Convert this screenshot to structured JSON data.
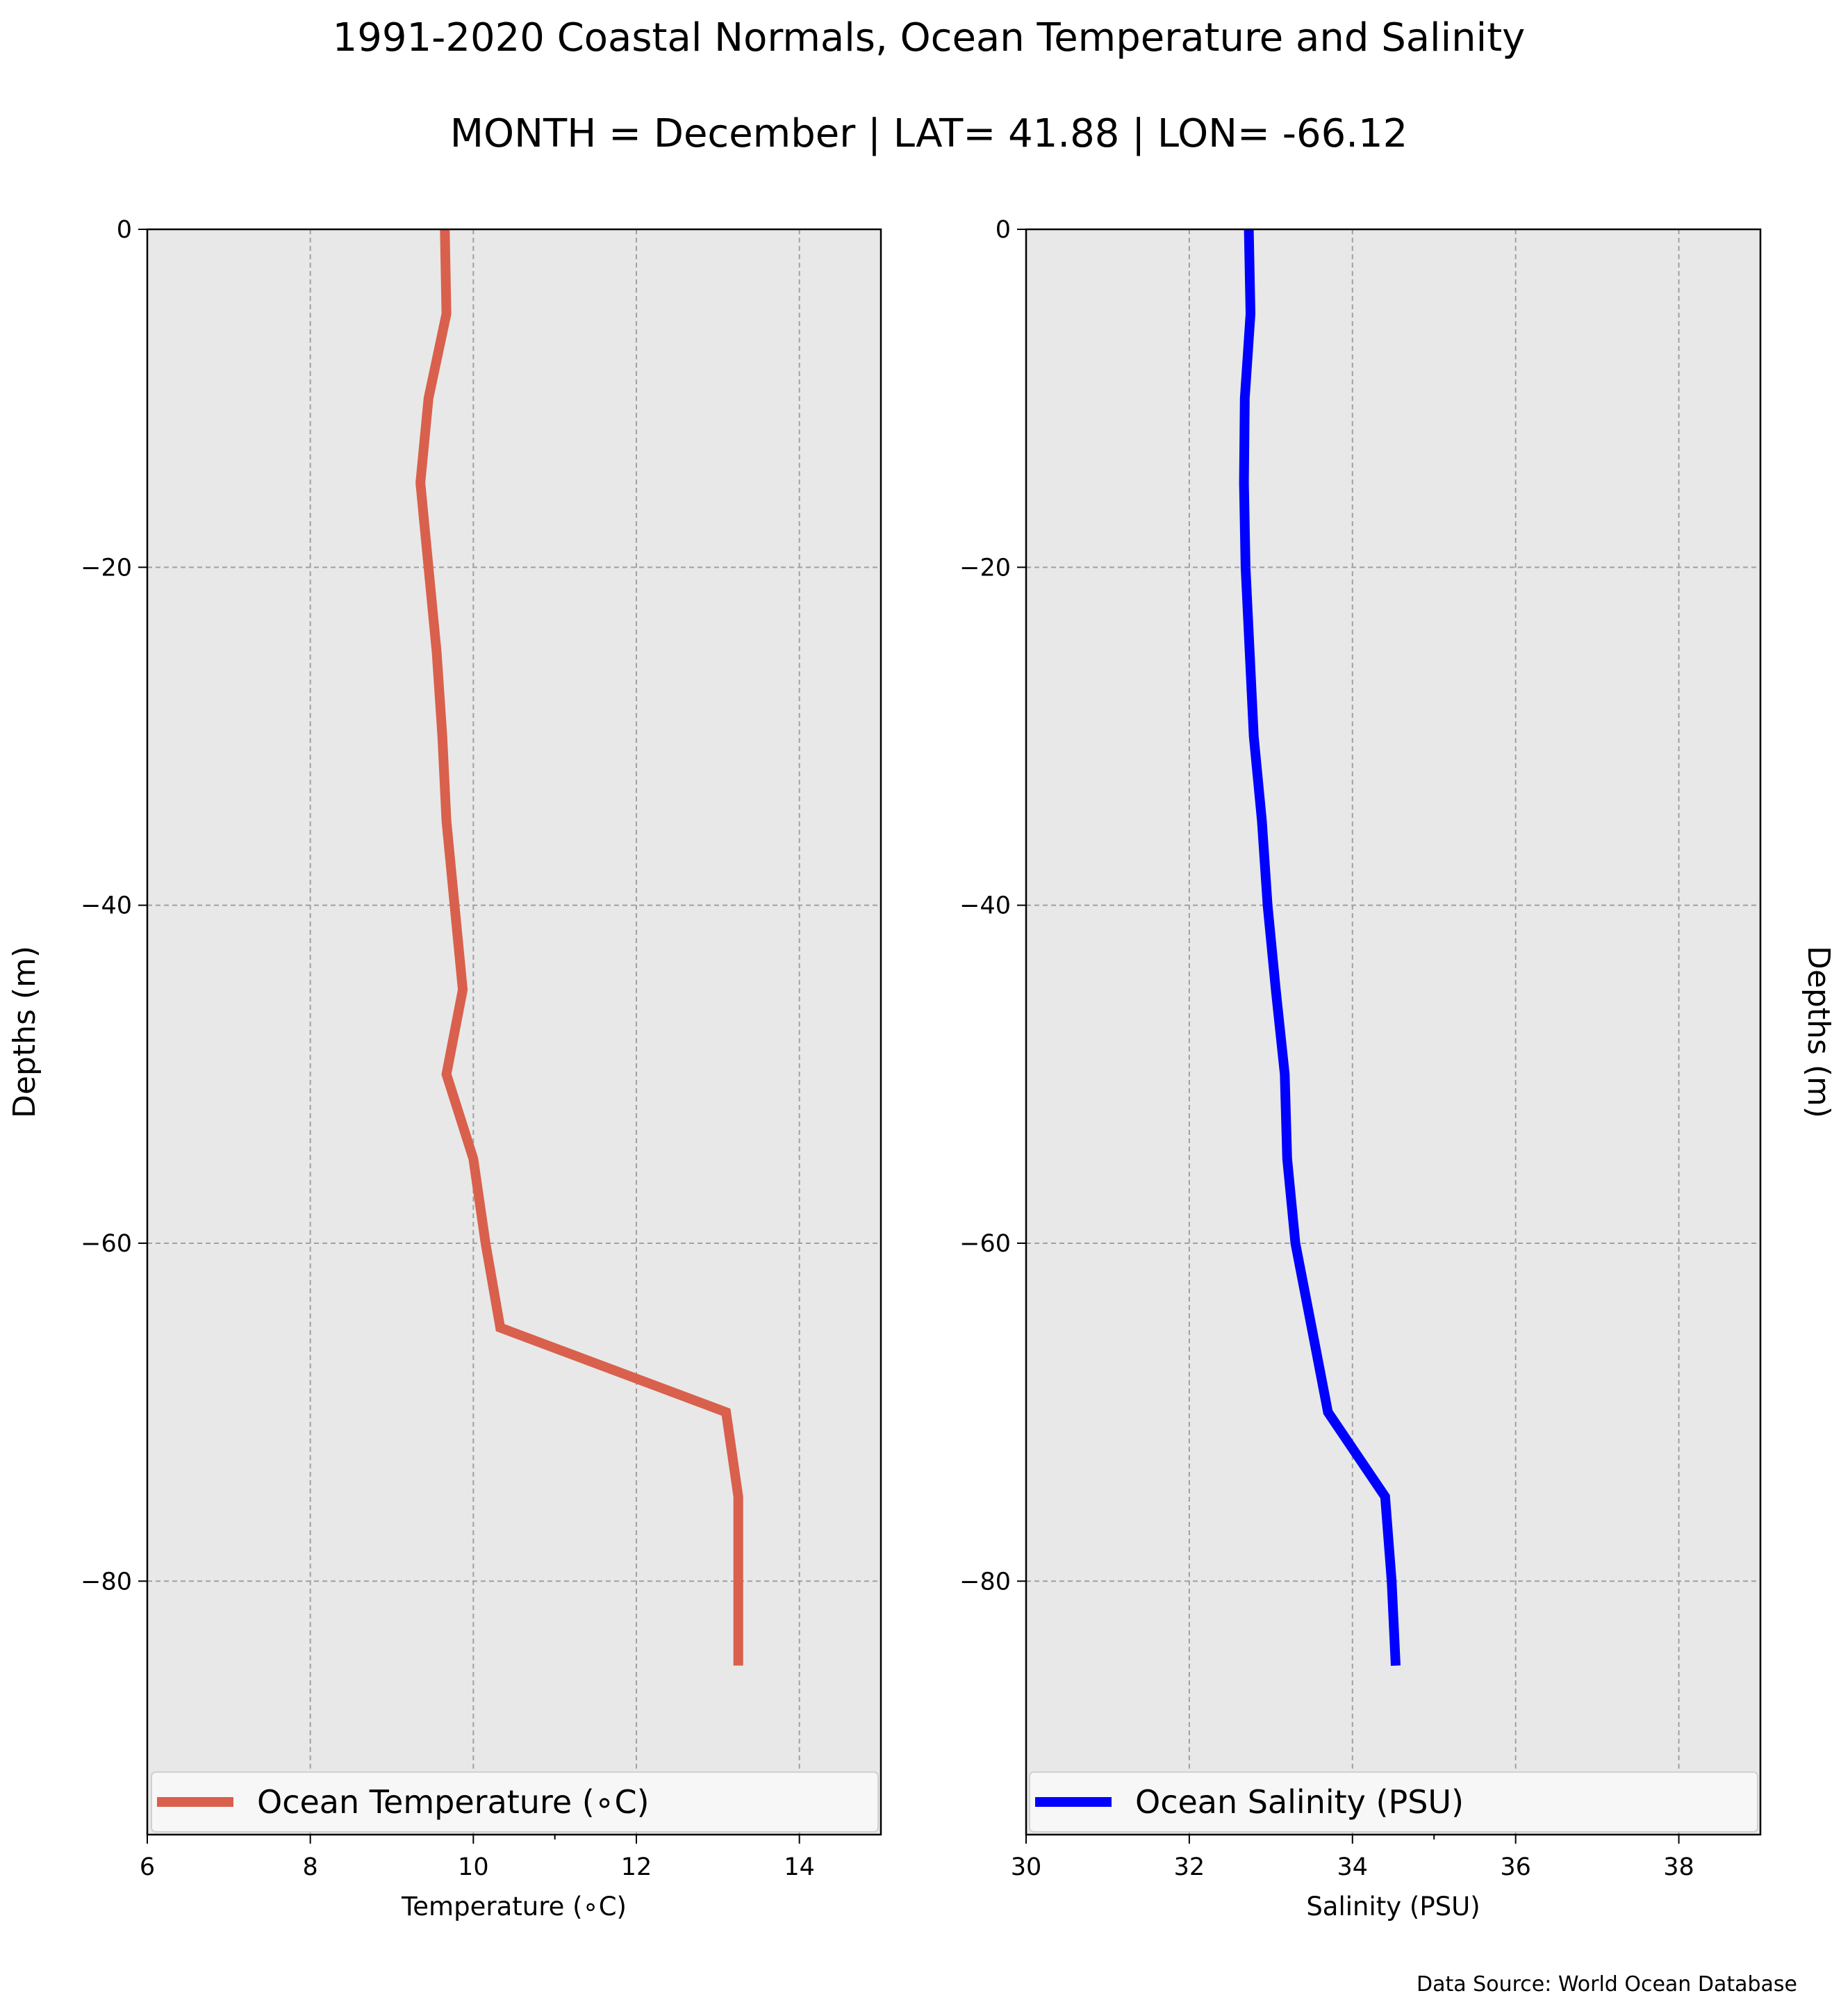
{
  "figure": {
    "title_line1": "1991-2020 Coastal Normals, Ocean Temperature and Salinity",
    "title_line2": "MONTH = December | LAT= 41.88 | LON= -66.12",
    "source": "Data Source: World Ocean Database",
    "colors": {
      "background": "#ffffff",
      "axes_face": "#e8e8e8",
      "grid": "#a0a0a0",
      "temperature_line": "#d9604c",
      "salinity_line": "#0000ff"
    }
  },
  "chart_data": [
    {
      "type": "line",
      "orientation": "profile (x = value, y = depth)",
      "xlabel": "Temperature ($^\\circ$C)",
      "xlabel_display": "Temperature (∘C)",
      "ylabel": "Depths (m)",
      "ylabel_side": "left",
      "xlim": [
        6,
        15
      ],
      "ylim": [
        -95,
        0
      ],
      "xticks": [
        6,
        8,
        10,
        12,
        14
      ],
      "xtick_labels": [
        "6",
        "8",
        "10",
        "12",
        "14"
      ],
      "yticks": [
        0,
        -20,
        -40,
        -60,
        -80
      ],
      "ytick_labels": [
        "0",
        "−20",
        "−40",
        "−60",
        "−80"
      ],
      "grid": true,
      "legend_position": "lower center",
      "series": [
        {
          "name": "Ocean Temperature (∘C)",
          "color": "#d9604c",
          "x": [
            9.65,
            9.67,
            9.45,
            9.35,
            9.45,
            9.55,
            9.62,
            9.67,
            9.77,
            9.87,
            9.67,
            10.0,
            10.15,
            10.33,
            13.1,
            13.25,
            13.25,
            13.25
          ],
          "y": [
            0,
            -5,
            -10,
            -15,
            -20,
            -25,
            -30,
            -35,
            -40,
            -45,
            -50,
            -55,
            -60,
            -65,
            -70,
            -75,
            -80,
            -85
          ]
        }
      ]
    },
    {
      "type": "line",
      "orientation": "profile (x = value, y = depth)",
      "xlabel": "Salinity (PSU)",
      "ylabel": "Depths (m)",
      "ylabel_side": "right",
      "xlim": [
        30,
        39
      ],
      "ylim": [
        -95,
        0
      ],
      "xticks": [
        30,
        32,
        34,
        36,
        38
      ],
      "xtick_labels": [
        "30",
        "32",
        "34",
        "36",
        "38"
      ],
      "yticks": [
        0,
        -20,
        -40,
        -60,
        -80
      ],
      "ytick_labels": [
        "0",
        "−20",
        "−40",
        "−60",
        "−80"
      ],
      "grid": true,
      "legend_position": "lower center",
      "series": [
        {
          "name": "Ocean Salinity (PSU)",
          "color": "#0000ff",
          "x": [
            32.73,
            32.75,
            32.68,
            32.67,
            32.69,
            32.74,
            32.79,
            32.89,
            32.96,
            33.06,
            33.17,
            33.2,
            33.3,
            33.5,
            33.7,
            34.4,
            34.48,
            34.53
          ],
          "y": [
            0,
            -5,
            -10,
            -15,
            -20,
            -25,
            -30,
            -35,
            -40,
            -45,
            -50,
            -55,
            -60,
            -65,
            -70,
            -75,
            -80,
            -85
          ]
        }
      ]
    }
  ]
}
